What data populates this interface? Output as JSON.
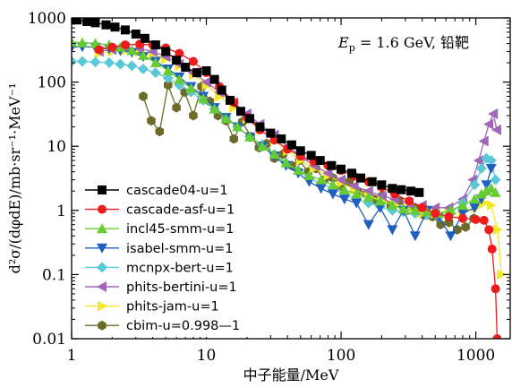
{
  "chart_data": {
    "type": "line",
    "annotation": "E_p = 1.6 GeV, 铅靶",
    "annotation_parts": {
      "symbol": "E",
      "subscript": "p",
      "rest": " = 1.6 GeV, 铅靶"
    },
    "xlabel": "中子能量/MeV",
    "ylabel": "d²σ/(dφdE)/mb·sr⁻¹·MeV⁻¹",
    "x_scale": "log",
    "y_scale": "log",
    "xlim": [
      1,
      1800
    ],
    "ylim": [
      0.01,
      1000
    ],
    "x_ticks": [
      {
        "value": 1,
        "label": "1"
      },
      {
        "value": 10,
        "label": "10"
      },
      {
        "value": 100,
        "label": "100"
      },
      {
        "value": 1000,
        "label": "1000"
      }
    ],
    "y_ticks": [
      {
        "value": 0.01,
        "label": "0.01"
      },
      {
        "value": 0.1,
        "label": "0.1"
      },
      {
        "value": 1,
        "label": "1"
      },
      {
        "value": 10,
        "label": "10"
      },
      {
        "value": 100,
        "label": "100"
      },
      {
        "value": 1000,
        "label": "1000"
      }
    ],
    "grid": false,
    "legend_position": "bottom-left",
    "series": [
      {
        "name": "cascade04-u=1",
        "color": "#000000",
        "marker": "square",
        "x": [
          1.0,
          1.1,
          1.3,
          1.5,
          1.8,
          2.1,
          2.5,
          3.0,
          3.5,
          4.2,
          5.0,
          6.0,
          7.0,
          8.5,
          10,
          11.5,
          13,
          15,
          18,
          21,
          25,
          30,
          36,
          43,
          50,
          60,
          70,
          85,
          100,
          120,
          140,
          170,
          200,
          240,
          280,
          330,
          380
        ],
        "y": [
          950,
          930,
          880,
          840,
          780,
          720,
          650,
          560,
          480,
          380,
          300,
          220,
          170,
          140,
          150,
          110,
          75,
          52,
          35,
          27,
          20,
          16,
          13,
          10.5,
          8.5,
          7.2,
          6.0,
          5.0,
          4.4,
          3.8,
          3.2,
          2.8,
          2.5,
          2.2,
          2.1,
          2.0,
          1.9
        ]
      },
      {
        "name": "cascade-asf-u=1",
        "color": "#ee1c1c",
        "marker": "circle",
        "x": [
          1.6,
          2.0,
          2.5,
          3.2,
          4.0,
          5.0,
          6.3,
          8.0,
          10,
          12.5,
          16,
          20,
          25,
          32,
          40,
          50,
          63,
          80,
          100,
          125,
          160,
          200,
          250,
          320,
          400,
          500,
          630,
          800,
          1000,
          1150,
          1250,
          1320,
          1400,
          1440
        ],
        "y": [
          320,
          350,
          380,
          390,
          380,
          340,
          280,
          210,
          140,
          85,
          48,
          28,
          18,
          12.5,
          9.0,
          7.0,
          5.8,
          5.0,
          4.2,
          3.4,
          2.8,
          2.3,
          1.8,
          1.4,
          1.1,
          0.9,
          0.8,
          0.75,
          0.72,
          0.7,
          0.5,
          0.25,
          0.06,
          0.01
        ]
      },
      {
        "name": "incl45-smm-u=1",
        "color": "#66cc33",
        "marker": "triangle-up",
        "x": [
          1.0,
          1.2,
          1.5,
          1.9,
          2.3,
          2.8,
          3.4,
          4.2,
          5.2,
          6.3,
          7.7,
          9.5,
          11.5,
          14,
          17,
          21,
          26,
          32,
          39,
          48,
          58,
          71,
          87,
          106,
          130,
          160,
          195,
          240,
          290,
          355,
          435,
          530,
          650,
          800,
          980,
          1100,
          1200,
          1300,
          1400
        ],
        "y": [
          420,
          410,
          400,
          380,
          350,
          310,
          260,
          200,
          150,
          110,
          80,
          55,
          38,
          27,
          20,
          14,
          10,
          7.5,
          5.5,
          4.2,
          3.5,
          3.0,
          2.5,
          2.1,
          1.8,
          1.6,
          1.4,
          1.2,
          1.05,
          1.0,
          0.95,
          0.9,
          1.0,
          1.2,
          1.5,
          1.8,
          2.0,
          2.2,
          1.9
        ]
      },
      {
        "name": "isabel-smm-u=1",
        "color": "#1f5fbf",
        "marker": "triangle-down",
        "x": [
          1.0,
          1.2,
          1.5,
          1.9,
          2.3,
          2.8,
          3.4,
          4.2,
          5.2,
          6.3,
          7.7,
          9.5,
          11.5,
          14,
          17,
          21,
          26,
          32,
          39,
          48,
          58,
          71,
          87,
          106,
          130,
          160,
          195,
          240,
          290,
          355,
          435,
          530,
          650,
          800,
          980,
          1100,
          1200,
          1300
        ],
        "y": [
          350,
          355,
          350,
          330,
          310,
          290,
          250,
          210,
          160,
          120,
          85,
          60,
          40,
          28,
          20,
          14,
          10,
          7.0,
          5.0,
          3.8,
          2.8,
          2.2,
          1.8,
          1.5,
          1.3,
          0.6,
          1.1,
          0.5,
          1.0,
          0.4,
          1.0,
          0.8,
          0.4,
          0.9,
          1.1,
          1.5,
          2.5,
          4.5
        ]
      },
      {
        "name": "mcnpx-bert-u=1",
        "color": "#5bc8d8",
        "marker": "diamond",
        "x": [
          1.0,
          1.2,
          1.5,
          1.9,
          2.3,
          2.8,
          3.4,
          4.2,
          5.2,
          6.3,
          7.7,
          9.5,
          11.5,
          14,
          17,
          21,
          26,
          32,
          39,
          48,
          58,
          71,
          87,
          106,
          130,
          160,
          195,
          240,
          290,
          355,
          435,
          530,
          650,
          800,
          980,
          1100,
          1200,
          1300,
          1400
        ],
        "y": [
          210,
          210,
          205,
          200,
          190,
          180,
          160,
          140,
          115,
          90,
          70,
          52,
          38,
          28,
          20,
          14,
          10.5,
          7.5,
          5.5,
          4.2,
          3.2,
          2.6,
          2.2,
          1.8,
          1.5,
          1.3,
          1.15,
          1.0,
          0.95,
          0.9,
          0.85,
          0.8,
          0.9,
          1.3,
          2.5,
          4.5,
          6.5,
          6.0,
          3.0
        ]
      },
      {
        "name": "phits-bertini-u=1",
        "color": "#a066b8",
        "marker": "triangle-left",
        "x": [
          1.6,
          2.0,
          2.5,
          3.2,
          4.0,
          5.0,
          6.3,
          8.0,
          10,
          12.5,
          16,
          20,
          25,
          32,
          40,
          50,
          63,
          80,
          100,
          125,
          160,
          200,
          250,
          320,
          400,
          500,
          630,
          800,
          950,
          1050,
          1150,
          1250,
          1350,
          1430
        ],
        "y": [
          300,
          320,
          340,
          330,
          300,
          250,
          190,
          140,
          100,
          70,
          48,
          32,
          22,
          15,
          10,
          7.0,
          5.0,
          3.8,
          3.0,
          2.4,
          2.0,
          1.7,
          1.5,
          1.3,
          1.2,
          1.1,
          1.1,
          1.5,
          3.0,
          6.0,
          12,
          22,
          32,
          18
        ]
      },
      {
        "name": "phits-jam-u=1",
        "color": "#f2e829",
        "marker": "triangle-right",
        "x": [
          1.6,
          2.0,
          2.5,
          3.2,
          4.0,
          5.0,
          6.3,
          8.0,
          10,
          12.5,
          16,
          20,
          25,
          32,
          40,
          50,
          63,
          80,
          100,
          125,
          160,
          200,
          250,
          320,
          400,
          500,
          630,
          800,
          1000,
          1150,
          1300,
          1450,
          1550
        ],
        "y": [
          280,
          300,
          310,
          300,
          270,
          230,
          180,
          130,
          90,
          60,
          40,
          27,
          18,
          12.5,
          8.5,
          6.0,
          4.5,
          3.5,
          2.7,
          2.1,
          1.7,
          1.4,
          1.2,
          1.0,
          0.9,
          0.9,
          0.9,
          0.95,
          1.1,
          1.3,
          1.2,
          0.5,
          0.1
        ]
      },
      {
        "name": "cbim-u=0.998—1",
        "color": "#6e6a2a",
        "marker": "hexagon",
        "x": [
          3.4,
          3.9,
          4.5,
          5.2,
          6.0,
          6.9,
          8.0,
          9.2,
          10.6,
          12.2,
          14,
          16,
          18.5,
          21.4,
          24.6,
          28,
          32,
          37,
          43,
          49,
          57,
          65,
          75,
          87,
          100,
          115,
          133,
          153,
          176,
          203,
          234,
          270,
          311,
          358,
          413,
          476,
          548,
          632,
          728,
          839,
          967
        ],
        "y": [
          60,
          25,
          17,
          90,
          40,
          70,
          30,
          85,
          50,
          30,
          25,
          13,
          24,
          14,
          9.5,
          11,
          6.5,
          7.5,
          5.0,
          6.0,
          4.0,
          4.5,
          3.0,
          3.2,
          2.4,
          2.8,
          2.0,
          1.8,
          1.5,
          1.7,
          1.2,
          1.4,
          1.0,
          1.1,
          0.85,
          0.8,
          0.6,
          0.65,
          0.5,
          0.55,
          0.75
        ]
      }
    ]
  }
}
